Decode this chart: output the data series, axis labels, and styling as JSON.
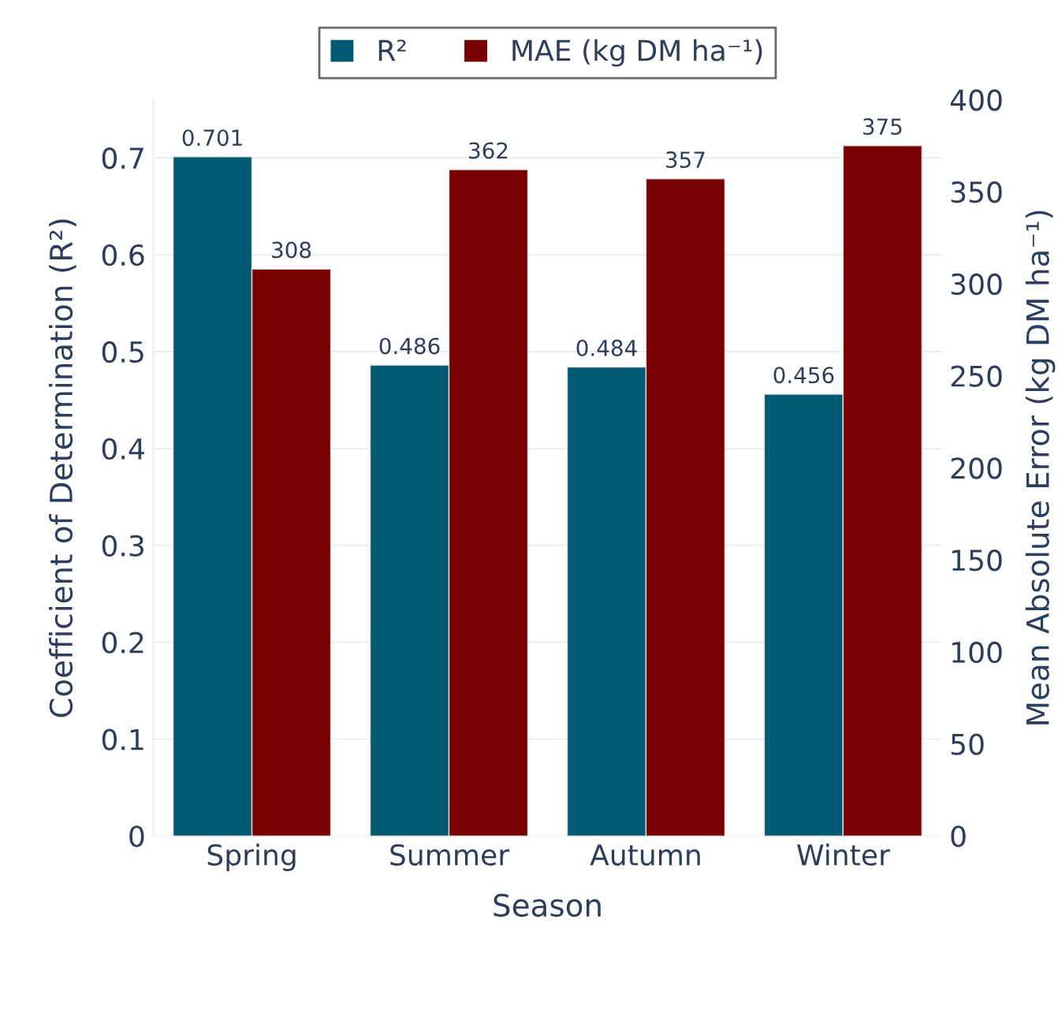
{
  "chart_data": {
    "type": "bar",
    "xlabel": "Season",
    "ylabel": "Coefficient of Determination (R²)",
    "y2label": "Mean Absolute Error (kg DM ha⁻¹)",
    "categories": [
      "Spring",
      "Summer",
      "Autumn",
      "Winter"
    ],
    "series": [
      {
        "name": "R²",
        "color": "#005a73",
        "values": [
          0.701,
          0.486,
          0.484,
          0.456
        ]
      },
      {
        "name": "MAE (kg DM ha⁻¹)",
        "color": "#780000",
        "values": [
          308,
          362,
          357,
          375
        ],
        "axis": "y2"
      }
    ],
    "ylim": [
      0,
      0.76
    ],
    "yticks": [
      0,
      0.1,
      0.2,
      0.3,
      0.4,
      0.5,
      0.6,
      0.7
    ],
    "y2lim": [
      0,
      400
    ],
    "y2ticks": [
      0,
      50,
      100,
      150,
      200,
      250,
      300,
      350,
      400
    ],
    "data_labels": true,
    "grid": "y",
    "legend": "top"
  }
}
